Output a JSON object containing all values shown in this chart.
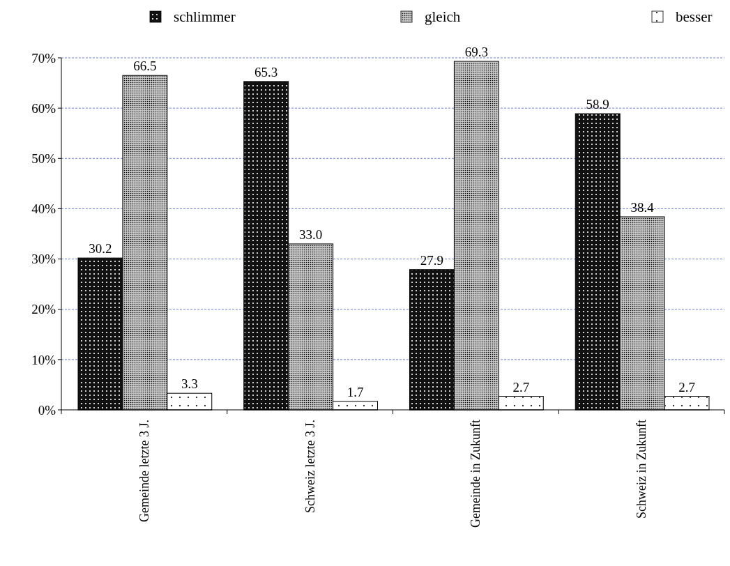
{
  "chart_data": {
    "type": "bar",
    "categories": [
      "Gemeinde letzte 3 J.",
      "Schweiz letzte 3 J.",
      "Gemeinde in Zukunft",
      "Schweiz in Zukunft"
    ],
    "series": [
      {
        "name": "schlimmer",
        "color": "#111111",
        "values": [
          30.2,
          65.3,
          27.9,
          58.9
        ],
        "value_labels": [
          "30.2",
          "65.3",
          "27.9",
          "58.9"
        ]
      },
      {
        "name": "gleich",
        "color": "#c8c8c8",
        "values": [
          66.5,
          33.0,
          69.3,
          38.4
        ],
        "value_labels": [
          "66.5",
          "33.0",
          "69.3",
          "38.4"
        ]
      },
      {
        "name": "besser",
        "color": "#ffffff",
        "values": [
          3.3,
          1.7,
          2.7,
          2.7
        ],
        "value_labels": [
          "3.3",
          "1.7",
          "2.7",
          "2.7"
        ]
      }
    ],
    "ylim": [
      0,
      70
    ],
    "yticks": [
      {
        "value": 0,
        "label": "0%"
      },
      {
        "value": 10,
        "label": "10%"
      },
      {
        "value": 20,
        "label": "20%"
      },
      {
        "value": 30,
        "label": "30%"
      },
      {
        "value": 40,
        "label": "40%"
      },
      {
        "value": 50,
        "label": "50%"
      },
      {
        "value": 60,
        "label": "60%"
      },
      {
        "value": 70,
        "label": "70%"
      }
    ],
    "grid": "y",
    "legend": "top"
  }
}
